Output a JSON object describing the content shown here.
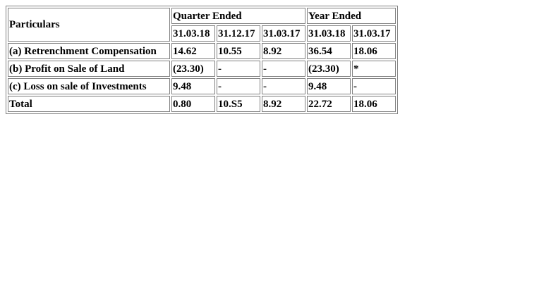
{
  "table": {
    "particulars_header": "Particulars",
    "quarter_group": "Quarter Ended",
    "year_group": "Year Ended",
    "columns": [
      "31.03.18",
      "31.12.17",
      "31.03.17",
      "31.03.18",
      "31.03.17"
    ],
    "rows": [
      {
        "label": "(a) Retrenchment Compensation",
        "values": [
          "14.62",
          "10.55",
          "8.92",
          "36.54",
          "18.06"
        ]
      },
      {
        "label": "(b) Profit on Sale of Land",
        "values": [
          "(23.30)",
          "-",
          "-",
          "(23.30)",
          "*"
        ]
      },
      {
        "label": "(c) Loss on sale of Investments",
        "values": [
          "9.48",
          "-",
          "-",
          "9.48",
          "-"
        ]
      },
      {
        "label": "Total",
        "values": [
          "0.80",
          "10.S5",
          "8.92",
          "22.72",
          "18.06"
        ]
      }
    ]
  }
}
